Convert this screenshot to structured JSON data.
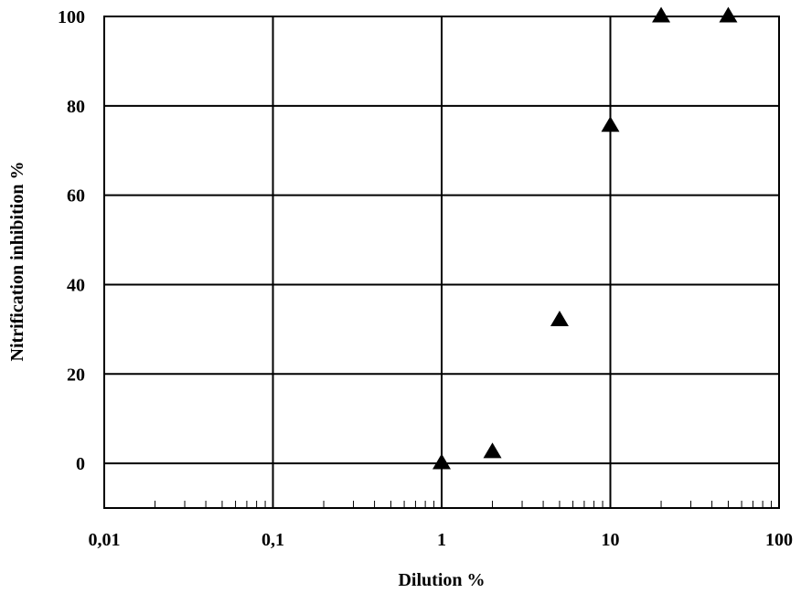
{
  "chart_data": {
    "type": "scatter",
    "title": "",
    "xlabel": "Dilution %",
    "ylabel": "Nitrification inhibition %",
    "x_scale": "log",
    "xlim": [
      0.01,
      100
    ],
    "ylim": [
      -10,
      100
    ],
    "x_tick_labels": [
      "0,01",
      "0,1",
      "1",
      "10",
      "100"
    ],
    "y_tick_labels": [
      "0",
      "20",
      "40",
      "60",
      "80",
      "100"
    ],
    "grid": true,
    "marker": "triangle",
    "marker_color": "#000000",
    "series": [
      {
        "x": [
          1,
          2,
          5,
          10,
          20,
          50
        ],
        "y": [
          0,
          2.5,
          32,
          75.5,
          100,
          100
        ]
      }
    ]
  }
}
